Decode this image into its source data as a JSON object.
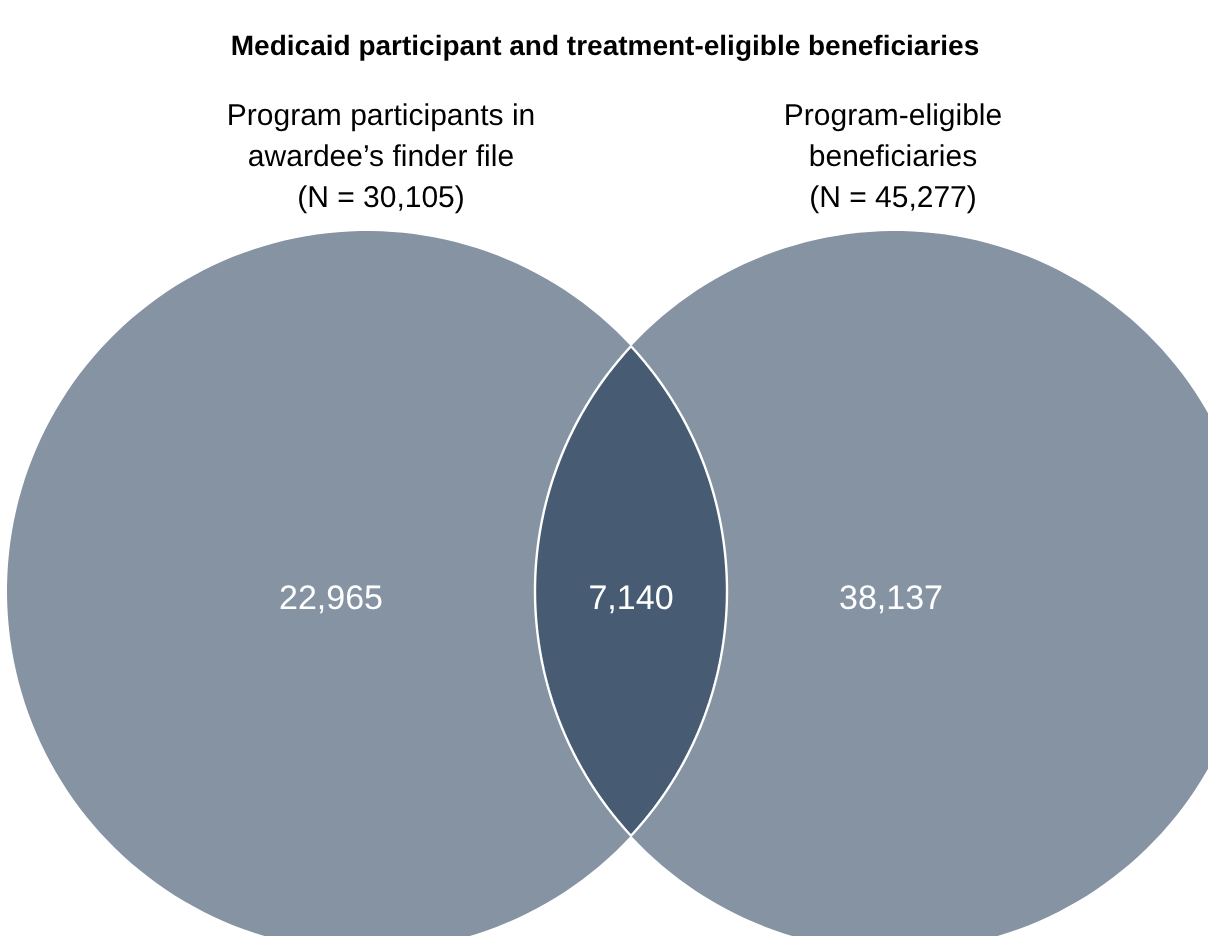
{
  "chart_data": {
    "type": "other",
    "title": "Medicaid participant and treatment-eligible beneficiaries",
    "categories": [
      "Program participants in\nawardee’s finder file\n(N = 30,105)",
      null,
      "Program-eligible\nbeneficiaries\n(N = 45,277)"
    ],
    "values": [
      22965,
      7140,
      38137
    ],
    "value_labels": [
      "22,965",
      "7,140",
      "38,137"
    ],
    "colors": [
      "#8593a3",
      "#475b73",
      "#8593a3"
    ]
  }
}
